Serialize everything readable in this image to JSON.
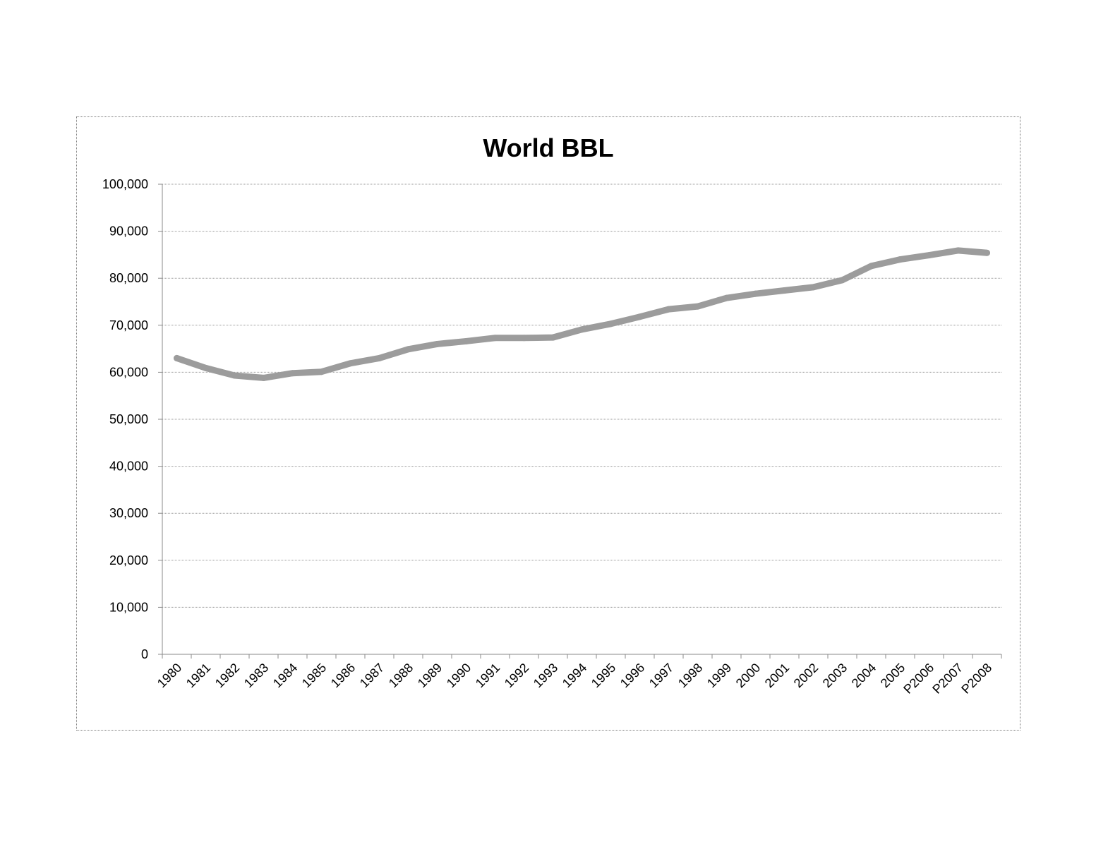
{
  "chart_data": {
    "type": "line",
    "title": "World BBL",
    "xlabel": "",
    "ylabel": "",
    "categories": [
      "1980",
      "1981",
      "1982",
      "1983",
      "1984",
      "1985",
      "1986",
      "1987",
      "1988",
      "1989",
      "1990",
      "1991",
      "1992",
      "1993",
      "1994",
      "1995",
      "1996",
      "1997",
      "1998",
      "1999",
      "2000",
      "2001",
      "2002",
      "2003",
      "2004",
      "2005",
      "P2006",
      "P2007",
      "P2008"
    ],
    "series": [
      {
        "values": [
          63000,
          60900,
          59300,
          58800,
          59800,
          60100,
          61900,
          63000,
          64900,
          66000,
          66600,
          67300,
          67300,
          67400,
          69100,
          70300,
          71800,
          73400,
          74000,
          75800,
          76700,
          77400,
          78100,
          79600,
          82600,
          84000,
          84900,
          85900,
          85400
        ],
        "color": "#9c9c9c"
      }
    ],
    "ylim": [
      0,
      100000
    ],
    "yticks": [
      0,
      10000,
      20000,
      30000,
      40000,
      50000,
      60000,
      70000,
      80000,
      90000,
      100000
    ],
    "ytick_labels": [
      "0",
      "10,000",
      "20,000",
      "30,000",
      "40,000",
      "50,000",
      "60,000",
      "70,000",
      "80,000",
      "90,000",
      "100,000"
    ],
    "grid": true,
    "legend": "none"
  }
}
